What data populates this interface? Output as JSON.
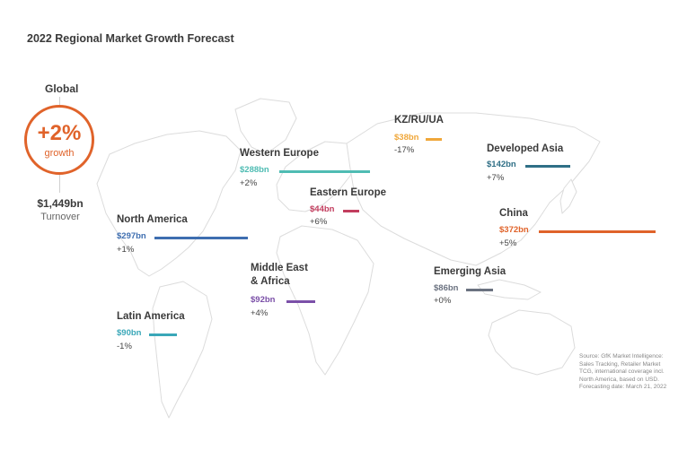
{
  "chart_data": {
    "type": "bar",
    "title": "2022 Regional Market Growth Forecast",
    "global": {
      "label": "Global",
      "growth": "+2%",
      "growth_label": "growth",
      "turnover": "$1,449bn",
      "turnover_label": "Turnover"
    },
    "categories": [
      "North America",
      "Latin America",
      "Western Europe",
      "Eastern Europe",
      "Middle East & Africa",
      "KZ/RU/UA",
      "Developed Asia",
      "China",
      "Emerging Asia"
    ],
    "values": [
      297,
      90,
      288,
      44,
      92,
      38,
      142,
      372,
      86
    ],
    "unit": "$bn",
    "regions": [
      {
        "id": "north-america",
        "name": "North America",
        "value": 297,
        "value_label": "$297bn",
        "change": "+1%",
        "color": "#3e6eb0"
      },
      {
        "id": "latin-america",
        "name": "Latin America",
        "value": 90,
        "value_label": "$90bn",
        "change": "-1%",
        "color": "#3aa7b8"
      },
      {
        "id": "western-europe",
        "name": "Western Europe",
        "value": 288,
        "value_label": "$288bn",
        "change": "+2%",
        "color": "#4fbcb3"
      },
      {
        "id": "eastern-europe",
        "name": "Eastern Europe",
        "value": 44,
        "value_label": "$44bn",
        "change": "+6%",
        "color": "#c23d5e"
      },
      {
        "id": "middle-east-africa",
        "name": "Middle East\n& Africa",
        "value": 92,
        "value_label": "$92bn",
        "change": "+4%",
        "color": "#7b50a8"
      },
      {
        "id": "kz-ru-ua",
        "name": "KZ/RU/UA",
        "value": 38,
        "value_label": "$38bn",
        "change": "-17%",
        "color": "#f0a73a"
      },
      {
        "id": "developed-asia",
        "name": "Developed Asia",
        "value": 142,
        "value_label": "$142bn",
        "change": "+7%",
        "color": "#2f6f86"
      },
      {
        "id": "china",
        "name": "China",
        "value": 372,
        "value_label": "$372bn",
        "change": "+5%",
        "color": "#e0632a"
      },
      {
        "id": "emerging-asia",
        "name": "Emerging Asia",
        "value": 86,
        "value_label": "$86bn",
        "change": "+0%",
        "color": "#6b7280"
      }
    ],
    "source": "Source: GfK Market Intelligence: Sales Tracking, Retailer Market TCG, international coverage incl. North America, based on USD. Forecasting date: March 21, 2022"
  }
}
